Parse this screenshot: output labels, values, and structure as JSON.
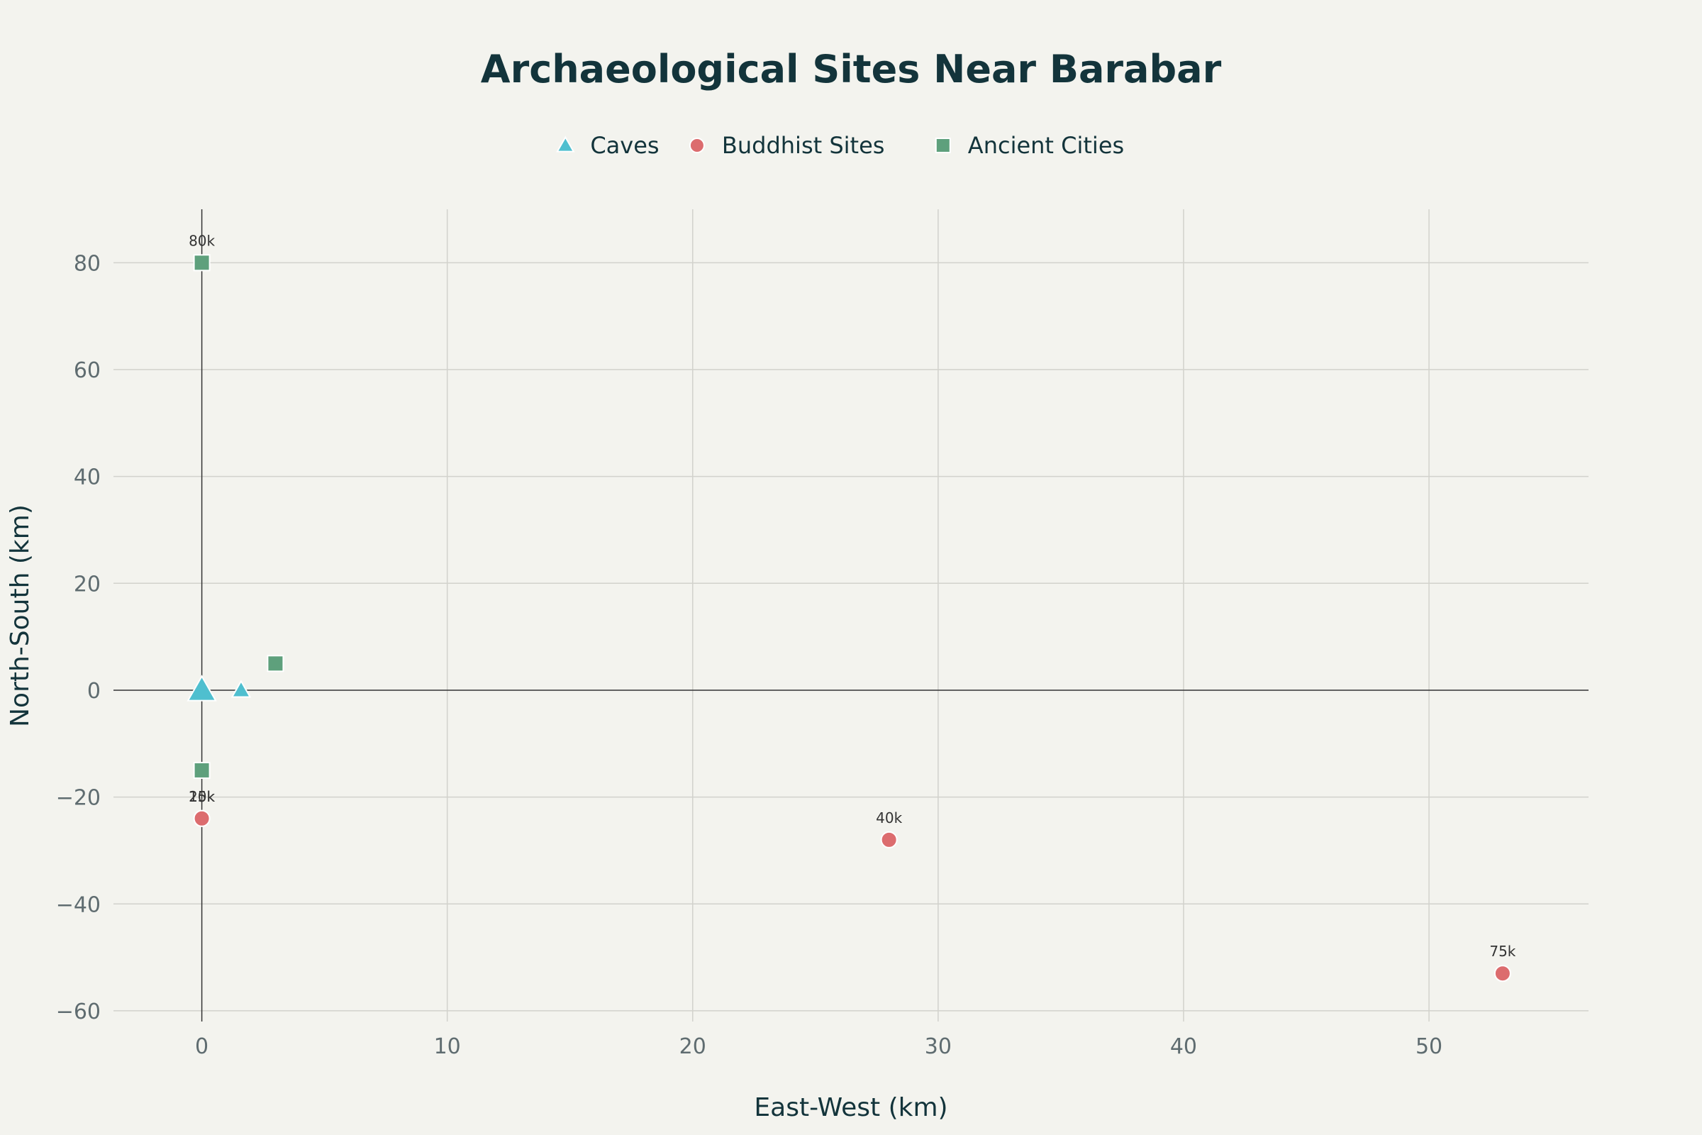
{
  "chart_data": {
    "type": "scatter",
    "title": "Archaeological Sites Near Barabar",
    "xlabel": "East-West (km)",
    "ylabel": "North-South (km)",
    "xlim": [
      -3.6,
      56.5
    ],
    "ylim": [
      -62,
      90
    ],
    "x_ticks": [
      0,
      10,
      20,
      30,
      40,
      50
    ],
    "y_ticks": [
      -60,
      -40,
      -20,
      0,
      20,
      40,
      60,
      80
    ],
    "grid": true,
    "legend_position": "top-center",
    "series": [
      {
        "name": "Caves",
        "marker": "triangle-up",
        "color": "#4fbfcf",
        "points": [
          {
            "x": 0,
            "y": 0,
            "size": 2,
            "label": ""
          },
          {
            "x": 1.6,
            "y": 0,
            "size": 1,
            "label": ""
          }
        ]
      },
      {
        "name": "Buddhist Sites",
        "marker": "circle",
        "color": "#dc6c6e",
        "points": [
          {
            "x": 0,
            "y": -24,
            "size": 1,
            "label": "15k"
          },
          {
            "x": 0,
            "y": -24,
            "size": 1,
            "label": "20k"
          },
          {
            "x": 28,
            "y": -28,
            "size": 1,
            "label": "40k"
          },
          {
            "x": 53,
            "y": -53,
            "size": 1,
            "label": "75k"
          }
        ]
      },
      {
        "name": "Ancient Cities",
        "marker": "square",
        "color": "#5ea07c",
        "points": [
          {
            "x": 0,
            "y": 80,
            "size": 1,
            "label": "80k"
          },
          {
            "x": 3,
            "y": 5,
            "size": 1,
            "label": ""
          },
          {
            "x": 0,
            "y": -15,
            "size": 1,
            "label": ""
          }
        ]
      }
    ]
  }
}
